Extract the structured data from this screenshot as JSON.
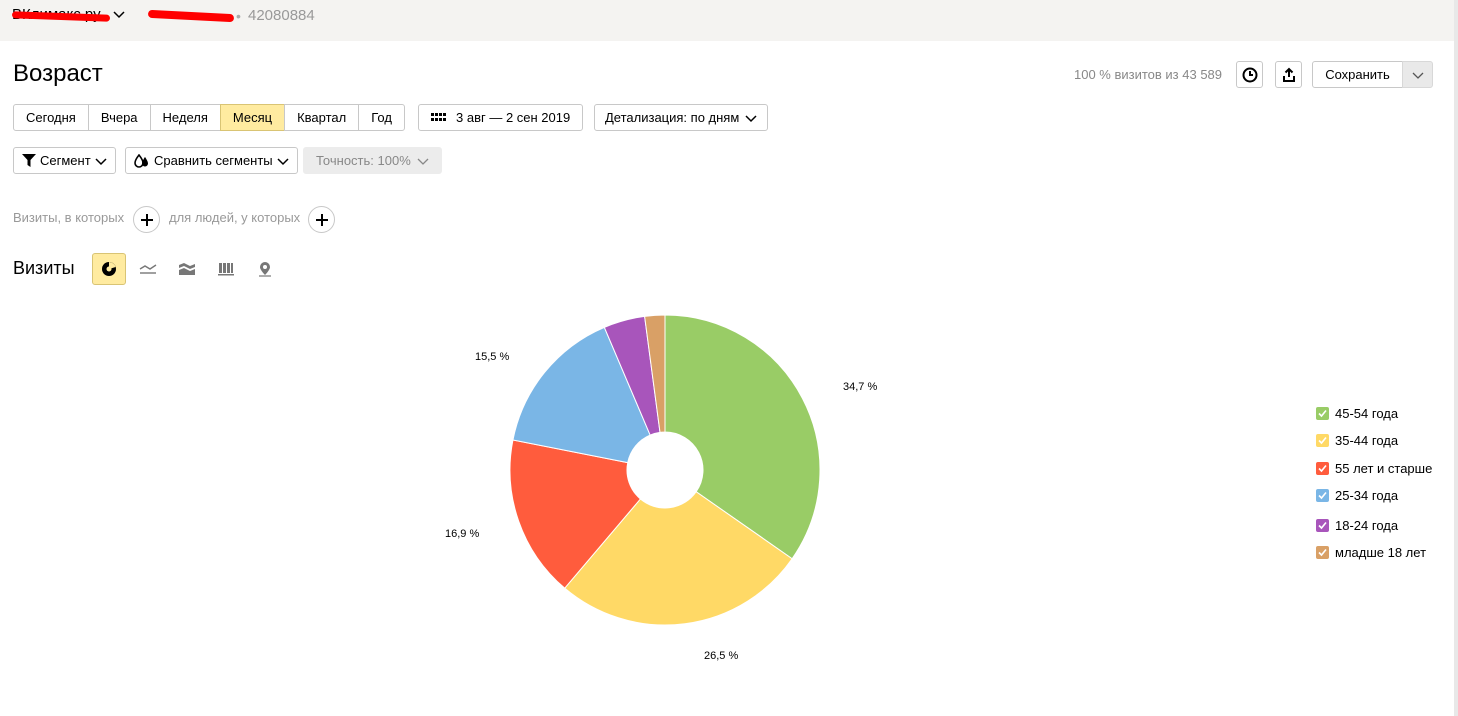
{
  "topbar": {
    "site": "ВКлимакс.ру",
    "counter_id": "42080884",
    "dot": "•"
  },
  "header": {
    "title": "Возраст",
    "visits_info": "100 % визитов из 43 589",
    "save_label": "Сохранить",
    "history_icon": "clock-icon",
    "export_icon": "export-icon"
  },
  "periods": [
    "Сегодня",
    "Вчера",
    "Неделя",
    "Месяц",
    "Квартал",
    "Год"
  ],
  "active_period": "Месяц",
  "date_range": "3 авг — 2 сен 2019",
  "detail": "Детализация: по дням",
  "segment": "Сегмент",
  "compare": "Сравнить сегменты",
  "accuracy": "Точность: 100%",
  "filters": {
    "visits_where": "Визиты, в которых",
    "people_where": "для людей, у которых"
  },
  "chart_header": "Визиты",
  "viz_types": [
    "pie-chart-icon",
    "line-chart-icon",
    "area-chart-icon",
    "bar-chart-icon",
    "map-icon"
  ],
  "chart_data": {
    "type": "pie",
    "donut": true,
    "title": "",
    "slices": [
      {
        "name": "45-54 года",
        "value": 34.7,
        "label": "34,7 %",
        "color": "#99cc66"
      },
      {
        "name": "35-44 года",
        "value": 26.5,
        "label": "26,5 %",
        "color": "#ffd966"
      },
      {
        "name": "55 лет и старше",
        "value": 16.9,
        "label": "16,9 %",
        "color": "#ff5c3d"
      },
      {
        "name": "25-34 года",
        "value": 15.5,
        "label": "15,5 %",
        "color": "#7ab6e6"
      },
      {
        "name": "18-24 года",
        "value": 4.3,
        "label": "",
        "color": "#a855bb"
      },
      {
        "name": "младше 18 лет",
        "value": 2.1,
        "label": "",
        "color": "#d9a066"
      }
    ],
    "legend_position": "right"
  }
}
